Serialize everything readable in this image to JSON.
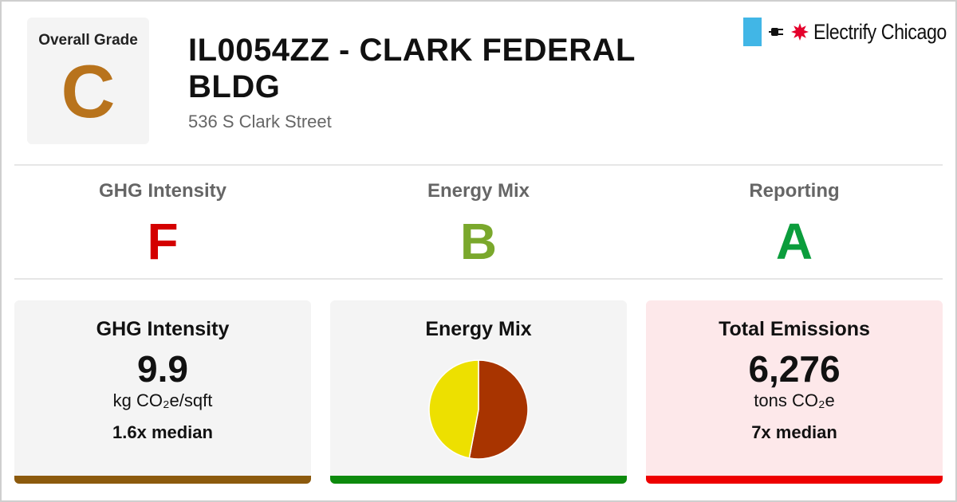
{
  "header": {
    "overall_label": "Overall Grade",
    "overall_grade": "C",
    "overall_color": "#b8731c",
    "title": "IL0054ZZ - CLARK FEDERAL BLDG",
    "address": "536 S Clark Street"
  },
  "brand": {
    "name": "Electrify Chicago",
    "flag_color": "#41b6e6",
    "star_color": "#e4002b",
    "icons": [
      "flag-stripe-icon",
      "plug-icon",
      "chicago-star-icon"
    ]
  },
  "grades": [
    {
      "label": "GHG Intensity",
      "grade": "F",
      "color": "#d40000"
    },
    {
      "label": "Energy Mix",
      "grade": "B",
      "color": "#7aa82c"
    },
    {
      "label": "Reporting",
      "grade": "A",
      "color": "#0b9d3c"
    }
  ],
  "cards": {
    "ghg": {
      "title": "GHG Intensity",
      "value": "9.9",
      "unit": "kg CO₂e/sqft",
      "median": "1.6x median",
      "bar_color": "#8c5a0d"
    },
    "mix": {
      "title": "Energy Mix",
      "bar_color": "#0d8a0d"
    },
    "emissions": {
      "title": "Total Emissions",
      "value": "6,276",
      "unit": "tons CO₂e",
      "median": "7x median",
      "bar_color": "#ee0000"
    }
  },
  "chart_data": {
    "type": "pie",
    "slices": [
      {
        "value": 0.53,
        "color": "#a83400"
      },
      {
        "value": 0.47,
        "color": "#ede000"
      }
    ]
  }
}
